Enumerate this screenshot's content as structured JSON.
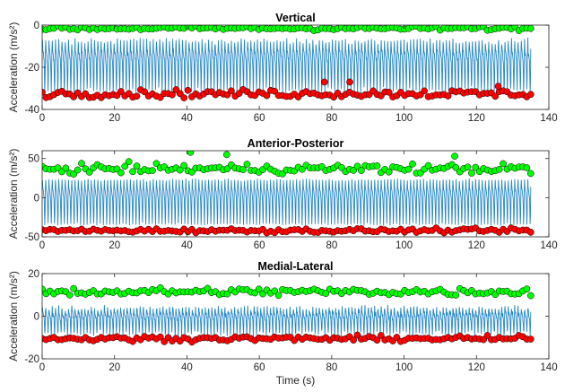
{
  "chart_data": [
    {
      "type": "line",
      "title": "Vertical",
      "xlabel": "",
      "ylabel": "Acceleration (m/s²)",
      "xlim": [
        0,
        140
      ],
      "ylim": [
        -40,
        0
      ],
      "xticks": [
        0,
        20,
        40,
        60,
        80,
        100,
        120,
        140
      ],
      "yticks": [
        -40,
        -20,
        0
      ],
      "series": [
        {
          "kind": "signal",
          "color": "#0072BD",
          "x_range": [
            0,
            135
          ],
          "center": -17,
          "amplitude_low": -33,
          "amplitude_high": -2,
          "cycles": 150
        },
        {
          "kind": "peaks",
          "color": "#00FF00",
          "marker": "circle",
          "x_range": [
            0,
            135
          ],
          "count": 125,
          "mean": -1.5,
          "spread": 1
        },
        {
          "kind": "troughs",
          "color": "#FF0000",
          "marker": "circle",
          "x_range": [
            0,
            135
          ],
          "count": 125,
          "mean": -32.5,
          "spread": 1.8
        }
      ],
      "outliers": [
        [
          78,
          -27
        ],
        [
          85,
          -27
        ],
        [
          126,
          -29
        ]
      ]
    },
    {
      "type": "line",
      "title": "Anterior-Posterior",
      "xlabel": "",
      "ylabel": "Acceleration (m/s²)",
      "xlim": [
        0,
        140
      ],
      "ylim": [
        -50,
        60
      ],
      "xticks": [
        0,
        20,
        40,
        60,
        80,
        100,
        120,
        140
      ],
      "yticks": [
        -50,
        0,
        50
      ],
      "series": [
        {
          "kind": "signal",
          "color": "#0072BD",
          "x_range": [
            0,
            135
          ],
          "center": 0,
          "amplitude_low": -40,
          "amplitude_high": 35,
          "cycles": 150
        },
        {
          "kind": "peaks",
          "color": "#00FF00",
          "marker": "circle",
          "x_range": [
            0,
            135
          ],
          "count": 125,
          "mean": 37,
          "spread": 6
        },
        {
          "kind": "troughs",
          "color": "#FF0000",
          "marker": "circle",
          "x_range": [
            0,
            135
          ],
          "count": 125,
          "mean": -42,
          "spread": 2.5
        }
      ],
      "outliers": [
        [
          41,
          58
        ],
        [
          51,
          55
        ],
        [
          114,
          53
        ]
      ]
    },
    {
      "type": "line",
      "title": "Medial-Lateral",
      "xlabel": "Time (s)",
      "ylabel": "Acceleration (m/s²)",
      "xlim": [
        0,
        140
      ],
      "ylim": [
        -20,
        20
      ],
      "xticks": [
        0,
        20,
        40,
        60,
        80,
        100,
        120,
        140
      ],
      "yticks": [
        -20,
        0,
        20
      ],
      "series": [
        {
          "kind": "signal",
          "color": "#0072BD",
          "x_range": [
            0,
            135
          ],
          "center": -1,
          "amplitude_low": -8,
          "amplitude_high": 8,
          "cycles": 150
        },
        {
          "kind": "peaks",
          "color": "#00FF00",
          "marker": "circle",
          "x_range": [
            0,
            135
          ],
          "count": 125,
          "mean": 11.5,
          "spread": 1.8
        },
        {
          "kind": "troughs",
          "color": "#FF0000",
          "marker": "circle",
          "x_range": [
            0,
            135
          ],
          "count": 125,
          "mean": -10.5,
          "spread": 1.2
        }
      ],
      "outliers": []
    }
  ]
}
